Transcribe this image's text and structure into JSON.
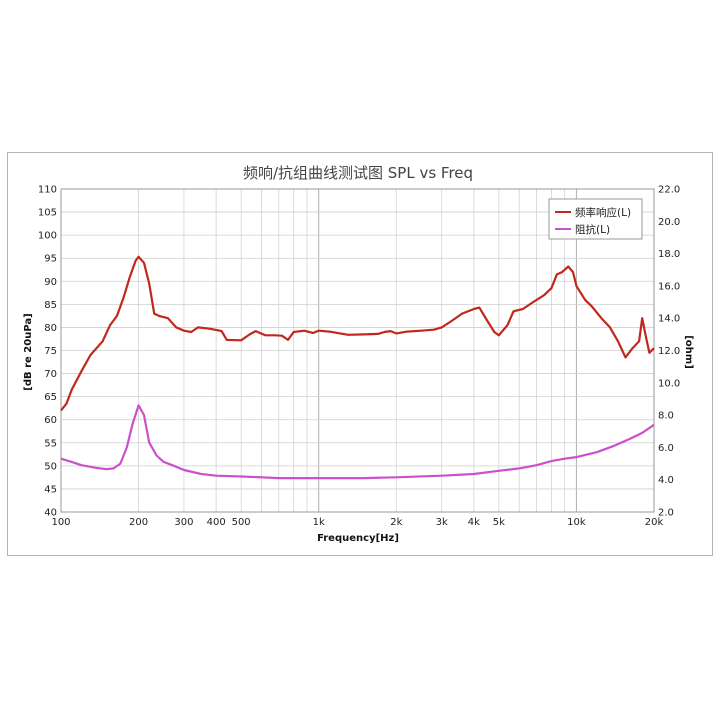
{
  "chart_data": {
    "type": "line",
    "title": "频响/抗组曲线测试图 SPL vs Freq",
    "xlabel": "Frequency[Hz]",
    "ylabel": "[dB re 20uPa]",
    "y2label": "[ohm]",
    "xscale": "log",
    "xlim": [
      100,
      20000
    ],
    "ylim": [
      40,
      110
    ],
    "y2lim": [
      2.0,
      22.0
    ],
    "grid": true,
    "legend_position": "top-right",
    "x_ticks": [
      {
        "v": 100,
        "label": "100"
      },
      {
        "v": 200,
        "label": "200"
      },
      {
        "v": 300,
        "label": "300"
      },
      {
        "v": 400,
        "label": "400"
      },
      {
        "v": 500,
        "label": "500"
      },
      {
        "v": 1000,
        "label": "1k"
      },
      {
        "v": 2000,
        "label": "2k"
      },
      {
        "v": 3000,
        "label": "3k"
      },
      {
        "v": 4000,
        "label": "4k"
      },
      {
        "v": 5000,
        "label": "5k"
      },
      {
        "v": 10000,
        "label": "10k"
      },
      {
        "v": 20000,
        "label": "20k"
      }
    ],
    "y_ticks": [
      "40",
      "45",
      "50",
      "55",
      "60",
      "65",
      "70",
      "75",
      "80",
      "85",
      "90",
      "95",
      "100",
      "105",
      "110"
    ],
    "y2_ticks": [
      "2.0",
      "4.0",
      "6.0",
      "8.0",
      "10.0",
      "12.0",
      "14.0",
      "16.0",
      "18.0",
      "20.0",
      "22.0"
    ],
    "series": [
      {
        "name": "频率响应(L)",
        "color": "#c0281e",
        "axis": "left",
        "points": [
          [
            100,
            62
          ],
          [
            105,
            63.5
          ],
          [
            110,
            66.5
          ],
          [
            120,
            70.5
          ],
          [
            130,
            74
          ],
          [
            145,
            77
          ],
          [
            155,
            80.5
          ],
          [
            165,
            82.5
          ],
          [
            175,
            86.5
          ],
          [
            185,
            91
          ],
          [
            195,
            94.5
          ],
          [
            200,
            95.3
          ],
          [
            210,
            94
          ],
          [
            220,
            89.5
          ],
          [
            230,
            83
          ],
          [
            240,
            82.5
          ],
          [
            260,
            82
          ],
          [
            280,
            80
          ],
          [
            300,
            79.3
          ],
          [
            320,
            79
          ],
          [
            340,
            80
          ],
          [
            380,
            79.7
          ],
          [
            420,
            79.2
          ],
          [
            440,
            77.3
          ],
          [
            500,
            77.2
          ],
          [
            540,
            78.5
          ],
          [
            570,
            79.2
          ],
          [
            620,
            78.3
          ],
          [
            680,
            78.3
          ],
          [
            720,
            78.2
          ],
          [
            760,
            77.3
          ],
          [
            800,
            79
          ],
          [
            880,
            79.3
          ],
          [
            950,
            78.8
          ],
          [
            1000,
            79.3
          ],
          [
            1100,
            79.1
          ],
          [
            1300,
            78.4
          ],
          [
            1500,
            78.5
          ],
          [
            1700,
            78.6
          ],
          [
            1800,
            79
          ],
          [
            1900,
            79.2
          ],
          [
            2000,
            78.7
          ],
          [
            2200,
            79.1
          ],
          [
            2500,
            79.3
          ],
          [
            2800,
            79.5
          ],
          [
            3000,
            80
          ],
          [
            3300,
            81.5
          ],
          [
            3600,
            83
          ],
          [
            4000,
            84
          ],
          [
            4200,
            84.3
          ],
          [
            4500,
            81.5
          ],
          [
            4800,
            79
          ],
          [
            5000,
            78.3
          ],
          [
            5400,
            80.5
          ],
          [
            5700,
            83.5
          ],
          [
            6200,
            84
          ],
          [
            6800,
            85.5
          ],
          [
            7500,
            87
          ],
          [
            8000,
            88.5
          ],
          [
            8400,
            91.5
          ],
          [
            8800,
            92
          ],
          [
            9300,
            93.2
          ],
          [
            9700,
            92
          ],
          [
            10000,
            89
          ],
          [
            10800,
            86
          ],
          [
            11500,
            84.5
          ],
          [
            12500,
            82
          ],
          [
            13500,
            80
          ],
          [
            14500,
            77
          ],
          [
            15500,
            73.5
          ],
          [
            16500,
            75.5
          ],
          [
            17500,
            77
          ],
          [
            18000,
            82
          ],
          [
            18600,
            78
          ],
          [
            19200,
            74.5
          ],
          [
            20000,
            75.5
          ]
        ]
      },
      {
        "name": "阻抗(L)",
        "color": "#cc4fcc",
        "axis": "right",
        "points": [
          [
            100,
            5.3
          ],
          [
            110,
            5.1
          ],
          [
            120,
            4.9
          ],
          [
            135,
            4.75
          ],
          [
            150,
            4.65
          ],
          [
            160,
            4.7
          ],
          [
            170,
            5.0
          ],
          [
            180,
            6.0
          ],
          [
            190,
            7.5
          ],
          [
            200,
            8.6
          ],
          [
            210,
            8.0
          ],
          [
            220,
            6.3
          ],
          [
            235,
            5.5
          ],
          [
            250,
            5.1
          ],
          [
            270,
            4.9
          ],
          [
            300,
            4.6
          ],
          [
            350,
            4.35
          ],
          [
            400,
            4.25
          ],
          [
            500,
            4.2
          ],
          [
            600,
            4.15
          ],
          [
            700,
            4.1
          ],
          [
            1000,
            4.1
          ],
          [
            1500,
            4.1
          ],
          [
            2000,
            4.15
          ],
          [
            3000,
            4.25
          ],
          [
            4000,
            4.35
          ],
          [
            5000,
            4.55
          ],
          [
            6000,
            4.7
          ],
          [
            7000,
            4.9
          ],
          [
            8000,
            5.15
          ],
          [
            9000,
            5.3
          ],
          [
            10000,
            5.4
          ],
          [
            12000,
            5.7
          ],
          [
            14000,
            6.1
          ],
          [
            16000,
            6.5
          ],
          [
            18000,
            6.9
          ],
          [
            20000,
            7.4
          ]
        ]
      }
    ]
  }
}
